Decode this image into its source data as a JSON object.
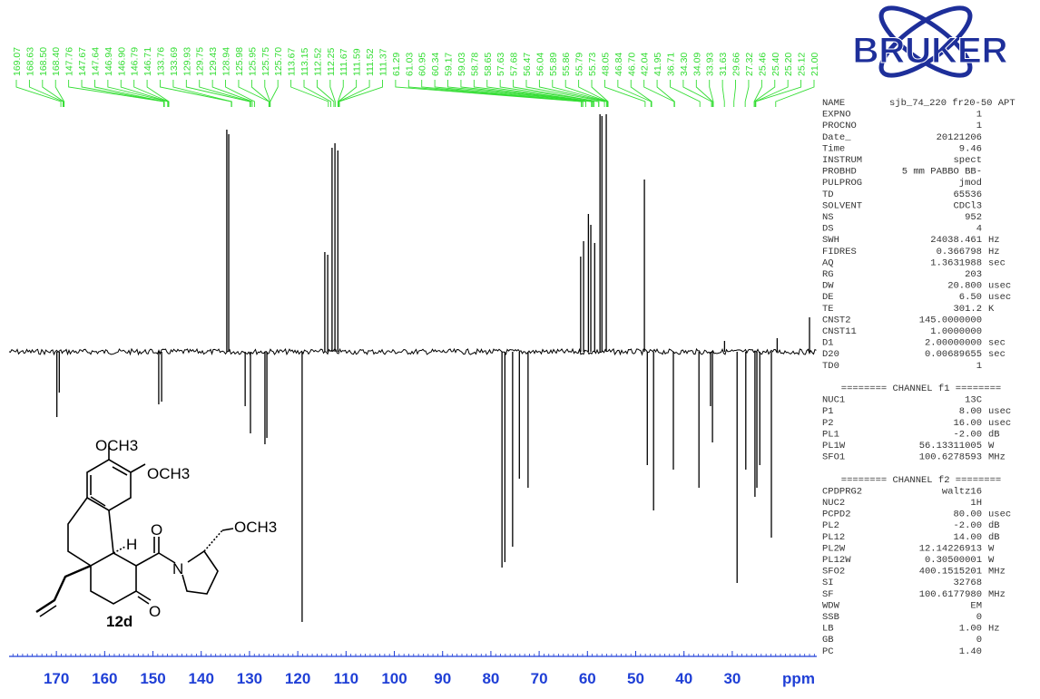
{
  "chart_data": {
    "type": "spectrum",
    "xlabel": "ppm",
    "xlim": [
      179.8,
      12.5
    ],
    "xticks": [
      170,
      160,
      150,
      140,
      130,
      120,
      110,
      100,
      90,
      80,
      70,
      60,
      50,
      40,
      30
    ],
    "minor_xtick_step": 1,
    "ylim": [
      -300,
      280
    ],
    "color": "#000000",
    "axis_color": "#1f3fd6",
    "label_color": "#33dd33",
    "x": [
      169.9,
      169.4,
      148.8,
      148.2,
      134.7,
      134.3,
      130.9,
      129.8,
      126.8,
      126.4,
      119.1,
      114.4,
      113.8,
      112.9,
      112.3,
      111.7,
      77.7,
      77.1,
      75.5,
      74.1,
      72.3,
      61.4,
      60.8,
      59.8,
      59.3,
      58.5,
      57.4,
      57.0,
      56.1,
      48.2,
      47.6,
      46.3,
      42.2,
      36.9,
      34.5,
      34.1,
      31.6,
      29.0,
      27.2,
      25.3,
      24.9,
      24.3,
      21.9,
      20.7,
      14.0
    ],
    "values": [
      -72,
      -45,
      -58,
      -55,
      245,
      240,
      -60,
      -90,
      -102,
      -95,
      -298,
      110,
      107,
      225,
      230,
      222,
      -238,
      -232,
      -215,
      -140,
      -150,
      105,
      122,
      152,
      140,
      120,
      262,
      260,
      262,
      190,
      -125,
      -175,
      -130,
      -150,
      -60,
      -100,
      12,
      -255,
      -130,
      -160,
      -150,
      -125,
      -205,
      15,
      38
    ],
    "peak_labels": [
      169.07,
      168.63,
      {
        "value": 168.5,
        "label": "168.50"
      },
      {
        "value": 168.4,
        "label": "168.40"
      },
      147.76,
      147.67,
      147.64,
      146.94,
      {
        "value": 146.9,
        "label": "146.90"
      },
      146.79,
      146.71,
      133.76,
      133.69,
      129.93,
      129.75,
      129.43,
      128.94,
      125.98,
      125.95,
      125.75,
      {
        "value": 125.7,
        "label": "125.70"
      },
      113.67,
      113.15,
      112.52,
      112.25,
      111.67,
      111.59,
      111.52,
      111.37,
      61.29,
      61.03,
      60.95,
      60.34,
      59.17,
      59.03,
      58.78,
      58.65,
      57.63,
      57.68,
      56.47,
      56.04,
      55.89,
      55.86,
      55.79,
      55.73,
      48.05,
      46.84,
      {
        "value": 46.7,
        "label": "46.70"
      },
      42.04,
      41.95,
      36.71,
      {
        "value": 34.3,
        "label": "34.30"
      },
      34.09,
      33.93,
      31.63,
      29.66,
      27.32,
      25.46,
      {
        "value": 25.4,
        "label": "25.40"
      },
      {
        "value": 25.2,
        "label": "25.20"
      },
      25.12,
      {
        "value": 21,
        "label": "21.00"
      }
    ]
  },
  "logo": {
    "text": "BRUKER"
  },
  "molecule": {
    "labels": [
      "OCH3",
      "OCH3",
      "OCH3",
      "O",
      "O",
      "N",
      "H"
    ],
    "compound": "12d"
  },
  "parameters": [
    [
      "NAME",
      "sjb_74_220 fr20-50 APT"
    ],
    [
      "EXPNO",
      "1"
    ],
    [
      "PROCNO",
      "1"
    ],
    [
      "Date_",
      "20121206"
    ],
    [
      "Time",
      "9.46"
    ],
    [
      "INSTRUM",
      "spect"
    ],
    [
      "PROBHD",
      "5 mm PABBO BB-"
    ],
    [
      "PULPROG",
      "jmod"
    ],
    [
      "TD",
      "65536"
    ],
    [
      "SOLVENT",
      "CDCl3"
    ],
    [
      "NS",
      "952"
    ],
    [
      "DS",
      "4"
    ],
    [
      "SWH",
      "24038.461",
      "Hz"
    ],
    [
      "FIDRES",
      "0.366798",
      "Hz"
    ],
    [
      "AQ",
      "1.3631988",
      "sec"
    ],
    [
      "RG",
      "203"
    ],
    [
      "DW",
      "20.800",
      "usec"
    ],
    [
      "DE",
      "6.50",
      "usec"
    ],
    [
      "TE",
      "301.2",
      "K"
    ],
    [
      "CNST2",
      "145.0000000"
    ],
    [
      "CNST11",
      "1.0000000"
    ],
    [
      "D1",
      "2.00000000",
      "sec"
    ],
    [
      "D20",
      "0.00689655",
      "sec"
    ],
    [
      "TD0",
      "1"
    ],
    {
      "header": "======== CHANNEL f1 ========"
    },
    [
      "NUC1",
      "13C"
    ],
    [
      "P1",
      "8.00",
      "usec"
    ],
    [
      "P2",
      "16.00",
      "usec"
    ],
    [
      "PL1",
      "-2.00",
      "dB"
    ],
    [
      "PL1W",
      "56.13311005",
      "W"
    ],
    [
      "SFO1",
      "100.6278593",
      "MHz"
    ],
    {
      "header": "======== CHANNEL f2 ========"
    },
    [
      "CPDPRG2",
      "waltz16"
    ],
    [
      "NUC2",
      "1H"
    ],
    [
      "PCPD2",
      "80.00",
      "usec"
    ],
    [
      "PL2",
      "-2.00",
      "dB"
    ],
    [
      "PL12",
      "14.00",
      "dB"
    ],
    [
      "PL2W",
      "12.14226913",
      "W"
    ],
    [
      "PL12W",
      "0.30500001",
      "W"
    ],
    [
      "SFO2",
      "400.1515201",
      "MHz"
    ],
    [
      "SI",
      "32768"
    ],
    [
      "SF",
      "100.6177980",
      "MHz"
    ],
    [
      "WDW",
      "EM"
    ],
    [
      "SSB",
      "0"
    ],
    [
      "LB",
      "1.00",
      "Hz"
    ],
    [
      "GB",
      "0"
    ],
    [
      "PC",
      "1.40"
    ]
  ]
}
